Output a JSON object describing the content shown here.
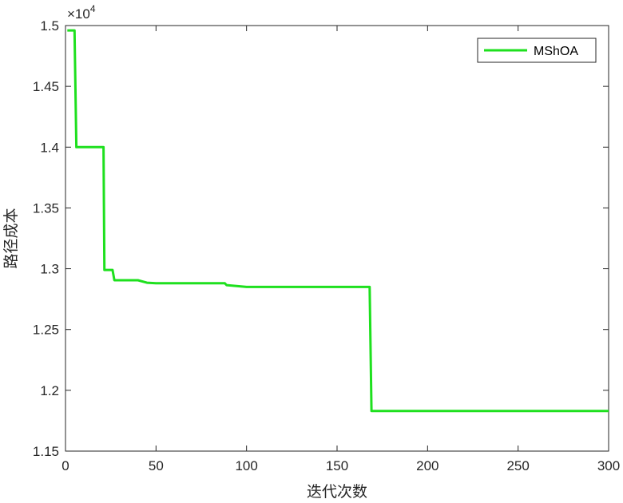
{
  "chart_data": {
    "type": "line",
    "title": "",
    "xlabel": "迭代次数",
    "ylabel": "路径成本",
    "xlim": [
      0,
      300
    ],
    "ylim": [
      11500,
      15000
    ],
    "x_ticks": [
      0,
      50,
      100,
      150,
      200,
      250,
      300
    ],
    "y_ticks": [
      11500,
      12000,
      12500,
      13000,
      13500,
      14000,
      14500,
      15000
    ],
    "y_tick_labels": [
      "1.15",
      "1.2",
      "1.25",
      "1.3",
      "1.35",
      "1.4",
      "1.45",
      "1.5"
    ],
    "y_exponent_label": "×10",
    "y_exponent_power": "4",
    "grid": false,
    "legend_position": "top-right",
    "series": [
      {
        "name": "MShOA",
        "color": "#1ee01e",
        "x": [
          1,
          5,
          6,
          21,
          21.5,
          26,
          27,
          40,
          45,
          50,
          88,
          89,
          100,
          150,
          168,
          169,
          300
        ],
        "y": [
          14960,
          14960,
          14000,
          14000,
          12990,
          12990,
          12905,
          12905,
          12885,
          12880,
          12880,
          12865,
          12850,
          12850,
          12850,
          11830,
          11830
        ]
      }
    ]
  }
}
